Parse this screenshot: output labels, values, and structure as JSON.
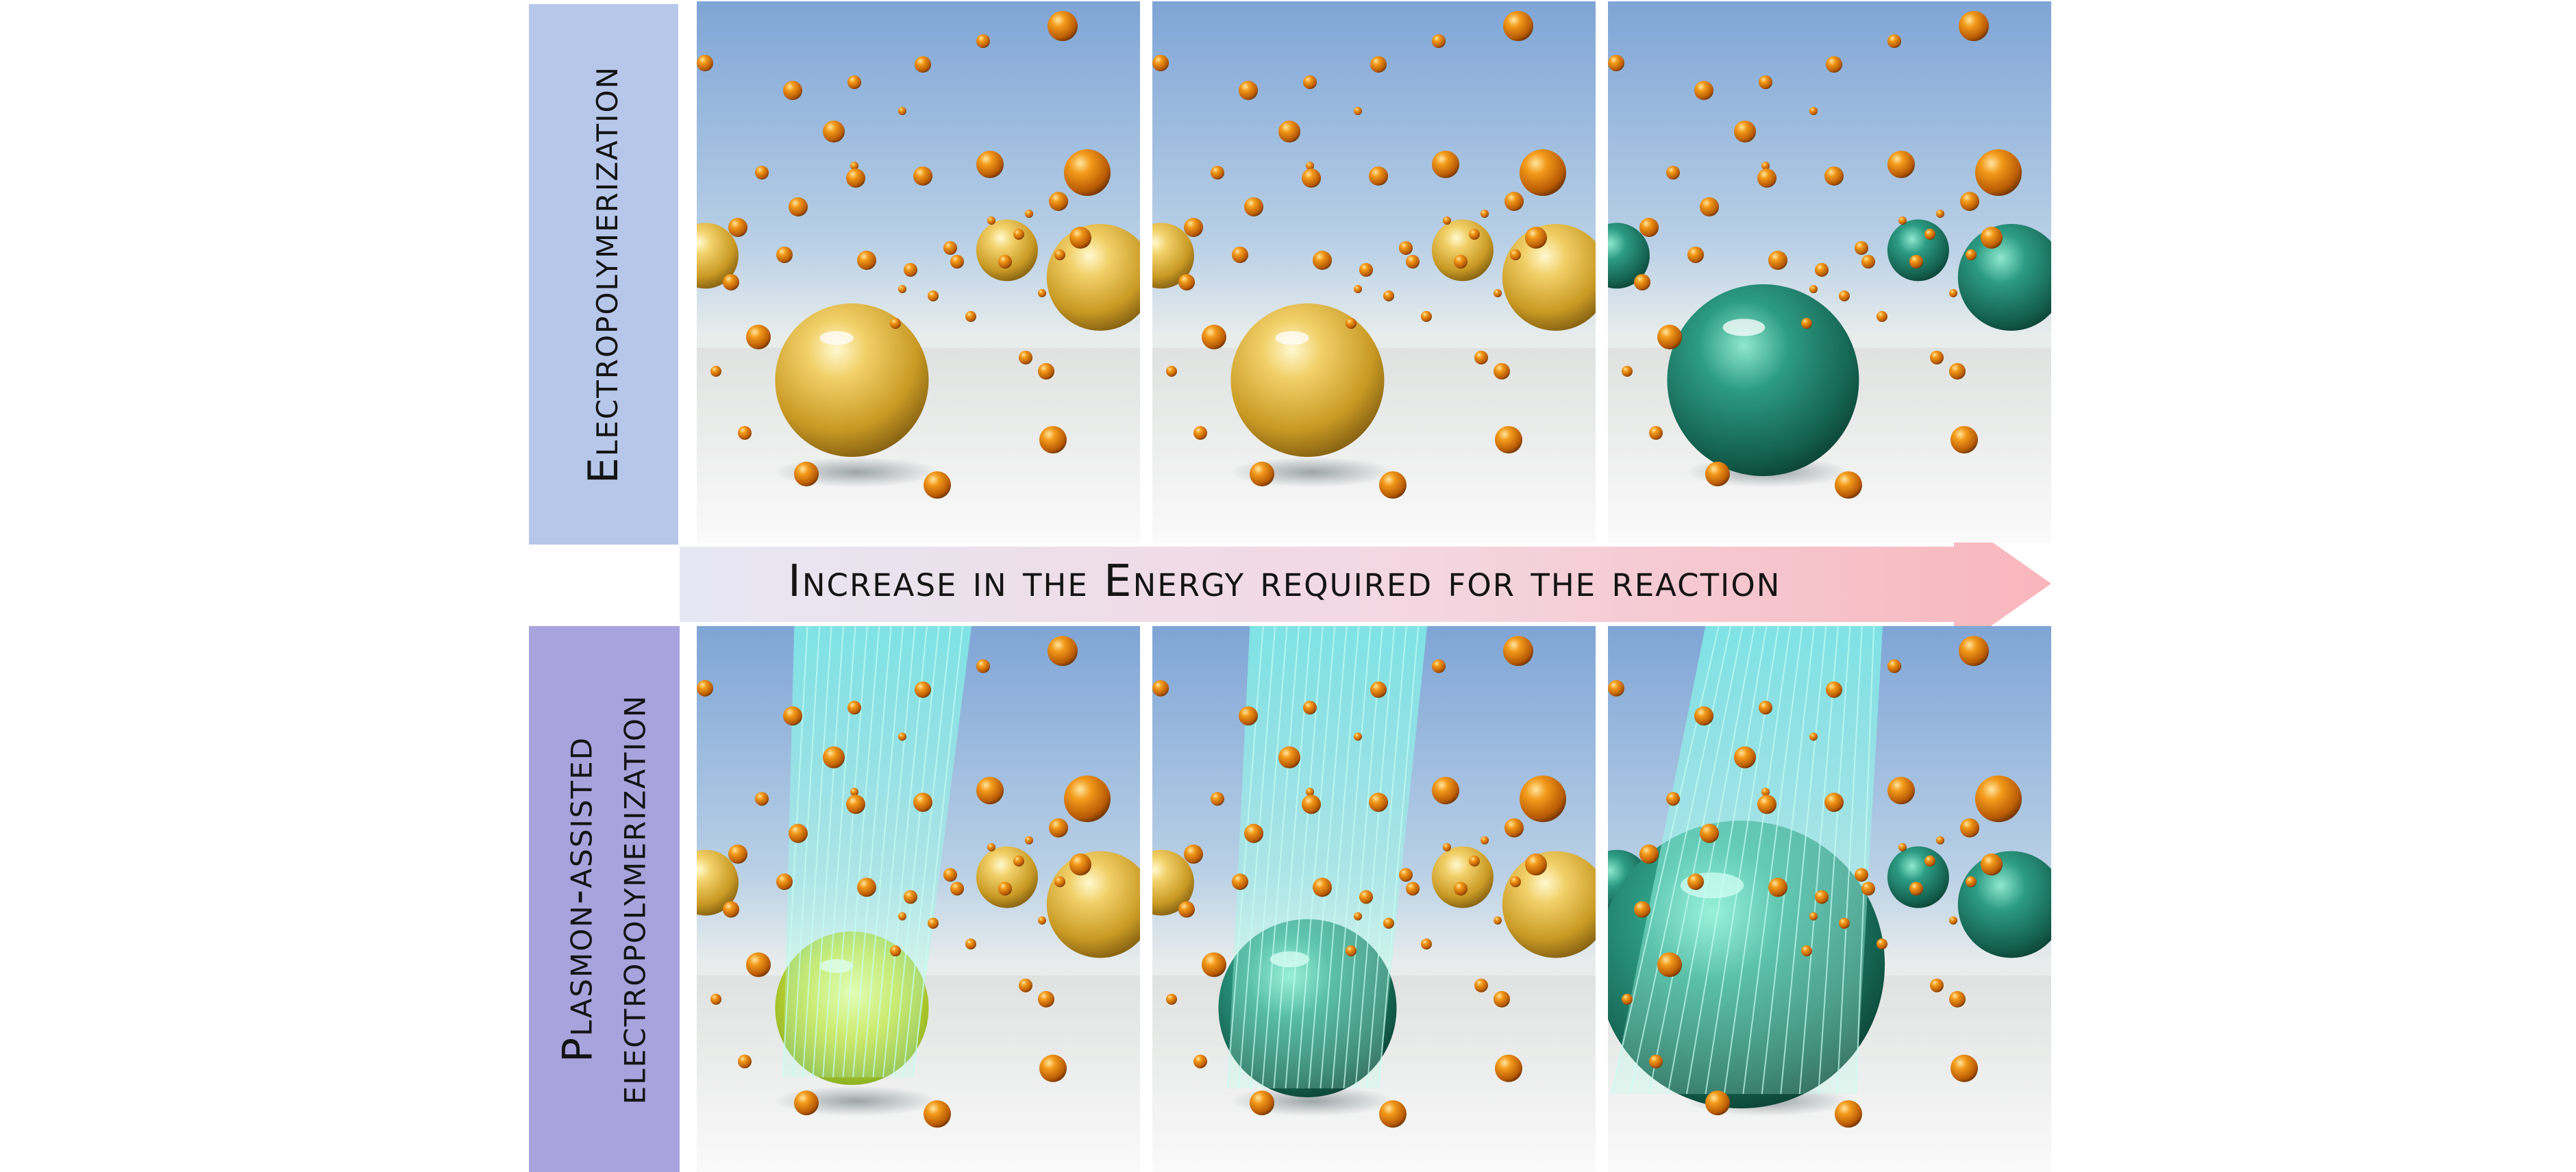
{
  "labels": {
    "top_row": "Electropolymerization",
    "bottom_row_line1": "Plasmon-assisted",
    "bottom_row_line2": "electropolymerization",
    "arrow": "Increase in the Energy required for the reaction"
  },
  "colors": {
    "top_label_bg": "#b6c7ea",
    "bottom_label_bg": "#a8a3dc",
    "gold": "#e2b63a",
    "orange_bead": "#d9780c",
    "polymer_green": "#1e8a74",
    "plasmon_beam": "#8ff5e6",
    "arrow_start": "#e6e7f3",
    "arrow_end": "#f8b6bc"
  },
  "panels": [
    {
      "row": "top",
      "stage": 1,
      "central_sphere": "gold",
      "polymer_coverage": 0.0,
      "plasmon_light": false
    },
    {
      "row": "top",
      "stage": 2,
      "central_sphere": "gold",
      "polymer_coverage": 0.0,
      "plasmon_light": false
    },
    {
      "row": "top",
      "stage": 3,
      "central_sphere": "green",
      "polymer_coverage": 1.0,
      "plasmon_light": false
    },
    {
      "row": "bottom",
      "stage": 1,
      "central_sphere": "gold-green",
      "polymer_coverage": 0.2,
      "plasmon_light": true
    },
    {
      "row": "bottom",
      "stage": 2,
      "central_sphere": "green",
      "polymer_coverage": 0.7,
      "plasmon_light": true
    },
    {
      "row": "bottom",
      "stage": 3,
      "central_sphere": "green",
      "polymer_coverage": 1.0,
      "plasmon_light": true
    }
  ]
}
